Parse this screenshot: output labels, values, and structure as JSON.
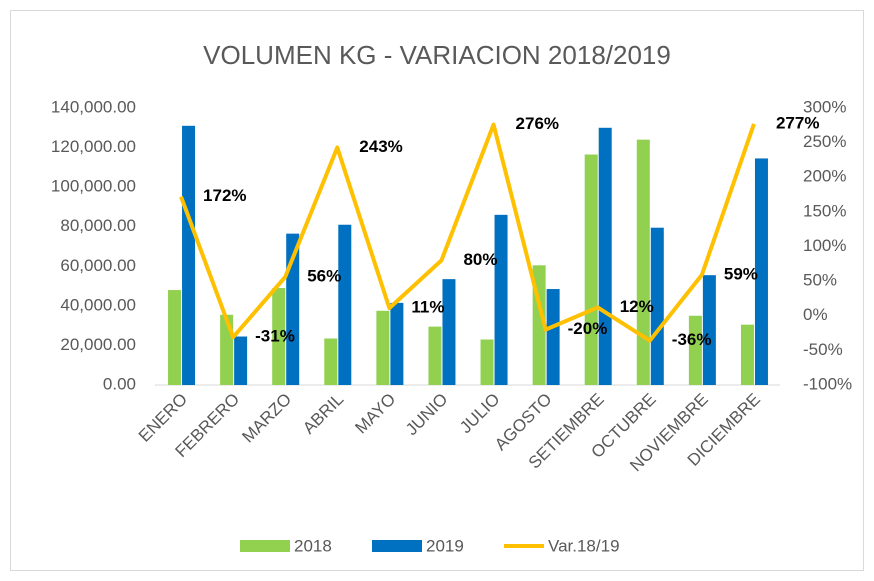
{
  "chart_data": {
    "type": "bar",
    "title": "VOLUMEN KG - VARIACION 2018/2019",
    "categories": [
      "ENERO",
      "FEBRERO",
      "MARZO",
      "ABRIL",
      "MAYO",
      "JUNIO",
      "JULIO",
      "AGOSTO",
      "SETIEMBRE",
      "OCTUBRE",
      "NOVIEMBRE",
      "DICIEMBRE"
    ],
    "series": [
      {
        "name": "2018",
        "color": "#92d050",
        "values": [
          48000,
          35500,
          49000,
          23500,
          37500,
          29500,
          23000,
          60500,
          116500,
          124000,
          35000,
          30500
        ]
      },
      {
        "name": "2019",
        "color": "#0070c0",
        "values": [
          131000,
          24500,
          76500,
          81000,
          41500,
          53500,
          86000,
          48500,
          130000,
          79500,
          55500,
          114500
        ]
      },
      {
        "name": "Var.18/19",
        "color": "#ffc000",
        "type": "line",
        "axis": "y2",
        "values": [
          172,
          -31,
          56,
          243,
          11,
          80,
          276,
          -20,
          12,
          -36,
          59,
          277
        ],
        "value_labels": [
          "172%",
          "-31%",
          "56%",
          "243%",
          "11%",
          "80%",
          "276%",
          "-20%",
          "12%",
          "-36%",
          "59%",
          "277%"
        ]
      }
    ],
    "ylim": [
      0,
      140000
    ],
    "yticks": [
      {
        "value": 0,
        "label": "0.00"
      },
      {
        "value": 20000,
        "label": "20,000.00"
      },
      {
        "value": 40000,
        "label": "40,000.00"
      },
      {
        "value": 60000,
        "label": "60,000.00"
      },
      {
        "value": 80000,
        "label": "80,000.00"
      },
      {
        "value": 100000,
        "label": "100,000.00"
      },
      {
        "value": 120000,
        "label": "120,000.00"
      },
      {
        "value": 140000,
        "label": "140,000.00"
      }
    ],
    "y2lim": [
      -100,
      300
    ],
    "y2ticks": [
      {
        "value": -100,
        "label": "-100%"
      },
      {
        "value": -50,
        "label": "-50%"
      },
      {
        "value": 0,
        "label": "0%"
      },
      {
        "value": 50,
        "label": "50%"
      },
      {
        "value": 100,
        "label": "100%"
      },
      {
        "value": 150,
        "label": "150%"
      },
      {
        "value": 200,
        "label": "200%"
      },
      {
        "value": 250,
        "label": "250%"
      },
      {
        "value": 300,
        "label": "300%"
      }
    ],
    "grid": false,
    "legend": "bottom"
  }
}
